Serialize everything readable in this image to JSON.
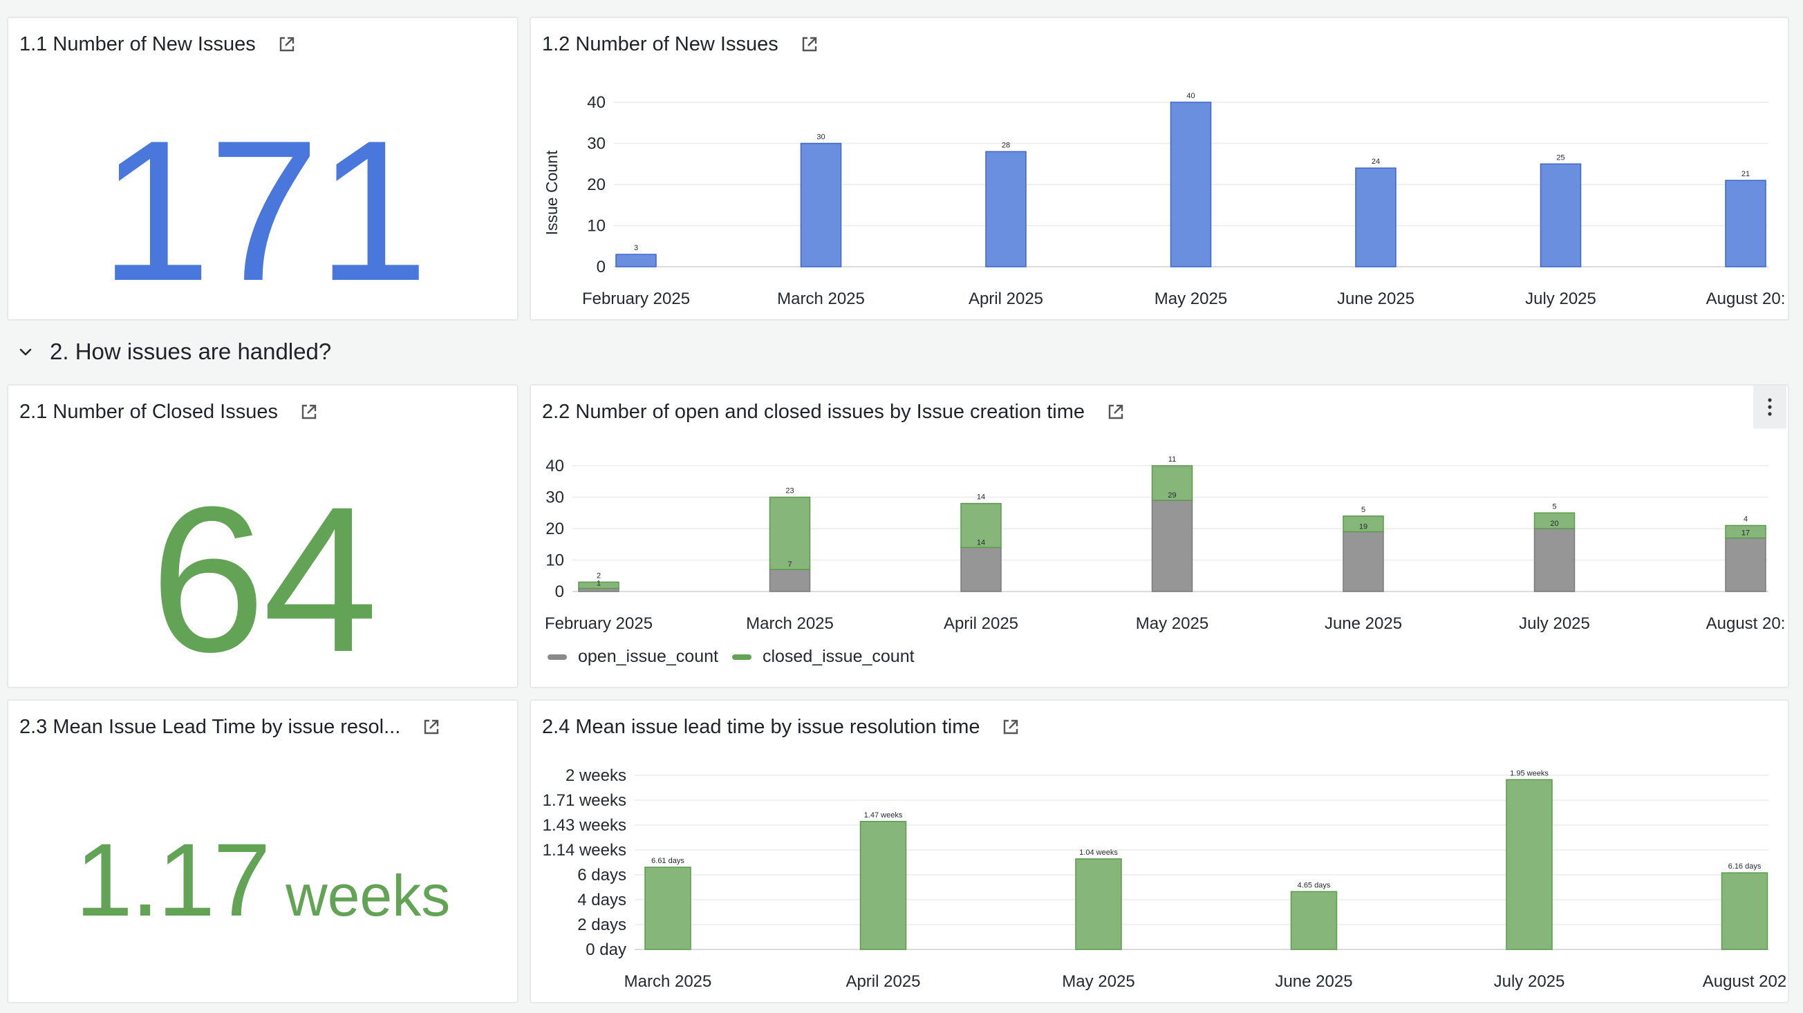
{
  "colors": {
    "blue": "#4a77dc",
    "blue_bar": "#6a8fdf",
    "blue_edge": "#3d66cc",
    "green": "#62a356",
    "green_bar": "#86b679",
    "green_edge": "#5b9a4f",
    "gray_bar": "#969696",
    "gray_edge": "#7a7a7a"
  },
  "panels": {
    "p11": {
      "title": "1.1 Number of New Issues",
      "value": "171"
    },
    "p12": {
      "title": "1.2 Number of New Issues"
    },
    "p21": {
      "title": "2.1 Number of Closed Issues",
      "value": "64"
    },
    "p22": {
      "title": "2.2 Number of open and closed issues by Issue creation time"
    },
    "p23": {
      "title": "2.3 Mean Issue Lead Time by issue resol...",
      "value": "1.17",
      "unit": "weeks"
    },
    "p24": {
      "title": "2.4 Mean issue lead time by issue resolution time"
    }
  },
  "section": {
    "title": "2. How issues are handled?"
  },
  "legend": {
    "open": "open_issue_count",
    "closed": "closed_issue_count"
  },
  "chart_data": [
    {
      "id": "new_issues",
      "type": "bar",
      "title": "1.2 Number of New Issues",
      "ylabel": "Issue Count",
      "ylim": [
        0,
        40
      ],
      "yticks": [
        "0",
        "10",
        "20",
        "30",
        "40"
      ],
      "categories": [
        "February 2025",
        "March 2025",
        "April 2025",
        "May 2025",
        "June 2025",
        "July 2025",
        "August 20:"
      ],
      "values": [
        3,
        30,
        28,
        40,
        24,
        25,
        21
      ]
    },
    {
      "id": "open_closed",
      "type": "bar",
      "stacked": true,
      "title": "2.2 Number of open and closed issues by Issue creation time",
      "ylim": [
        0,
        40
      ],
      "yticks": [
        "0",
        "10",
        "20",
        "30",
        "40"
      ],
      "categories": [
        "February 2025",
        "March 2025",
        "April 2025",
        "May 2025",
        "June 2025",
        "July 2025",
        "August 20:"
      ],
      "series": [
        {
          "name": "open_issue_count",
          "values": [
            1,
            7,
            14,
            29,
            19,
            20,
            17
          ],
          "labels": [
            "1",
            "7",
            "14",
            "29",
            "19",
            "20",
            "17"
          ]
        },
        {
          "name": "closed_issue_count",
          "values": [
            2,
            23,
            14,
            11,
            5,
            5,
            4
          ],
          "labels": [
            "2",
            "23",
            "14",
            "11",
            "5",
            "5",
            "4"
          ]
        }
      ]
    },
    {
      "id": "lead_time",
      "type": "bar",
      "title": "2.4 Mean issue lead time by issue resolution time",
      "ylim": [
        0,
        14
      ],
      "yticks": [
        "0 day",
        "2 days",
        "4 days",
        "6 days",
        "1.14 weeks",
        "1.43 weeks",
        "1.71 weeks",
        "2 weeks"
      ],
      "categories": [
        "March 2025",
        "April 2025",
        "May 2025",
        "June 2025",
        "July 2025",
        "August 202"
      ],
      "values": [
        6.61,
        10.29,
        7.28,
        4.65,
        13.65,
        6.16
      ],
      "labels": [
        "6.61 days",
        "1.47 weeks",
        "1.04 weeks",
        "4.65 days",
        "1.95 weeks",
        "6.16 days"
      ]
    }
  ]
}
